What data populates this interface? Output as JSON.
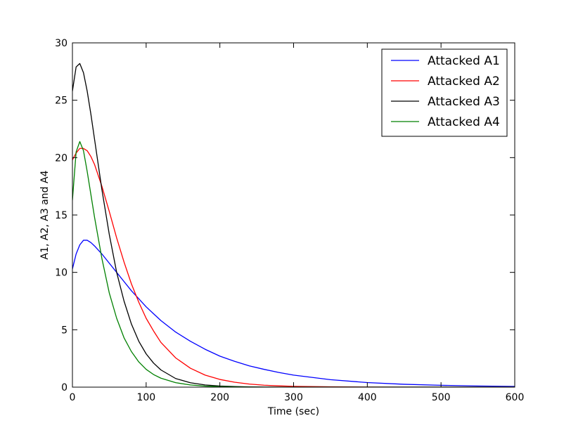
{
  "chart_data": {
    "type": "line",
    "title": "",
    "xlabel": "Time (sec)",
    "ylabel": "A1, A2, A3 and A4",
    "xlim": [
      0,
      600
    ],
    "ylim": [
      0,
      30
    ],
    "xticks": [
      0,
      100,
      200,
      300,
      400,
      500,
      600
    ],
    "yticks": [
      0,
      5,
      10,
      15,
      20,
      25,
      30
    ],
    "grid": false,
    "legend_position": "top-right",
    "x": [
      0,
      5,
      10,
      15,
      20,
      25,
      30,
      40,
      50,
      60,
      70,
      80,
      90,
      100,
      110,
      120,
      140,
      160,
      180,
      200,
      220,
      240,
      260,
      280,
      300,
      350,
      400,
      450,
      500,
      550,
      600
    ],
    "series": [
      {
        "name": "Attacked A1",
        "color": "#0000ff",
        "values": [
          10.3,
          11.6,
          12.4,
          12.8,
          12.8,
          12.6,
          12.3,
          11.6,
          10.8,
          10.0,
          9.2,
          8.4,
          7.7,
          7.0,
          6.4,
          5.8,
          4.8,
          4.0,
          3.3,
          2.7,
          2.25,
          1.85,
          1.55,
          1.28,
          1.05,
          0.65,
          0.4,
          0.25,
          0.16,
          0.1,
          0.06
        ]
      },
      {
        "name": "Attacked A2",
        "color": "#ff0000",
        "values": [
          19.8,
          20.4,
          20.8,
          20.8,
          20.6,
          20.1,
          19.4,
          17.5,
          15.3,
          13.0,
          10.9,
          9.0,
          7.4,
          6.0,
          4.9,
          3.9,
          2.55,
          1.65,
          1.05,
          0.67,
          0.43,
          0.27,
          0.17,
          0.11,
          0.07,
          0.03,
          0.01,
          0.0,
          0.0,
          0.0,
          0.0
        ]
      },
      {
        "name": "Attacked A3",
        "color": "#000000",
        "values": [
          25.8,
          27.9,
          28.2,
          27.4,
          25.8,
          23.8,
          21.6,
          17.2,
          13.3,
          10.0,
          7.5,
          5.5,
          4.0,
          2.9,
          2.1,
          1.5,
          0.75,
          0.38,
          0.19,
          0.1,
          0.05,
          0.02,
          0.01,
          0.0,
          0.0,
          0.0,
          0.0,
          0.0,
          0.0,
          0.0,
          0.0
        ]
      },
      {
        "name": "Attacked A4",
        "color": "#008000",
        "values": [
          16.3,
          20.5,
          21.4,
          20.6,
          18.8,
          16.8,
          14.8,
          11.2,
          8.2,
          6.0,
          4.3,
          3.1,
          2.2,
          1.55,
          1.1,
          0.78,
          0.39,
          0.19,
          0.09,
          0.05,
          0.02,
          0.01,
          0.0,
          0.0,
          0.0,
          0.0,
          0.0,
          0.0,
          0.0,
          0.0,
          0.0
        ]
      }
    ]
  }
}
